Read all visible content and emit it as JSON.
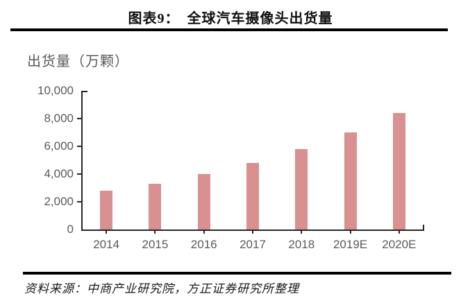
{
  "header": {
    "title": "图表9：　全球汽车摄像头出货量"
  },
  "chart_data": {
    "type": "bar",
    "title": "图表9： 全球汽车摄像头出货量",
    "axis_title": "出货量（万颗）",
    "categories": [
      "2014",
      "2015",
      "2016",
      "2017",
      "2018",
      "2019E",
      "2020E"
    ],
    "values": [
      2800,
      3300,
      4000,
      4800,
      5800,
      7000,
      8400
    ],
    "ylim": [
      0,
      10000
    ],
    "ytick_interval": 2000,
    "ytick_labels": [
      "0",
      "2,000",
      "4,000",
      "6,000",
      "8,000",
      "10,000"
    ],
    "xlabel": "",
    "ylabel": "出货量（万颗）",
    "grid": false,
    "legend": false
  },
  "colors": {
    "bar": "#D89090",
    "axis": "#262626",
    "tick_label": "#595959",
    "rule": "#000000"
  },
  "footer": {
    "source": "资料来源：中商产业研究院，方正证券研究所整理"
  }
}
